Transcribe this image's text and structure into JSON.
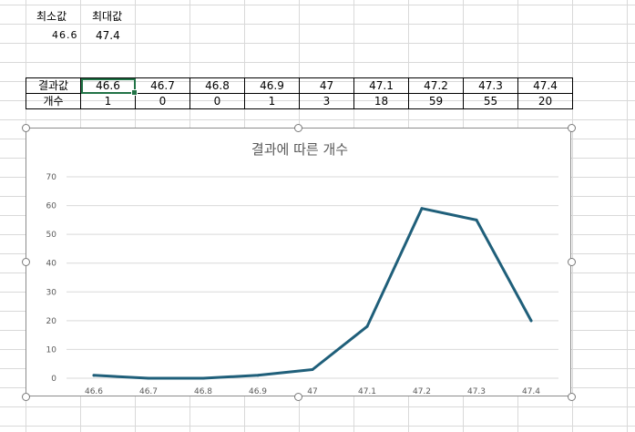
{
  "header": {
    "min_label": "최소값",
    "max_label": "최대값",
    "min_value": "46.6",
    "max_value": "47.4"
  },
  "table": {
    "row1_label": "결과값",
    "row2_label": "개수",
    "results": [
      "46.6",
      "46.7",
      "46.8",
      "46.9",
      "47",
      "47.1",
      "47.2",
      "47.3",
      "47.4"
    ],
    "counts": [
      "1",
      "0",
      "0",
      "1",
      "3",
      "18",
      "59",
      "55",
      "20"
    ]
  },
  "chart_data": {
    "type": "line",
    "title": "결과에 따른 개수",
    "categories": [
      "46.6",
      "46.7",
      "46.8",
      "46.9",
      "47",
      "47.1",
      "47.2",
      "47.3",
      "47.4"
    ],
    "series": [
      {
        "values": [
          1,
          0,
          0,
          1,
          3,
          18,
          59,
          55,
          20
        ]
      }
    ],
    "ylim": [
      0,
      70
    ],
    "yticks": [
      0,
      10,
      20,
      30,
      40,
      50,
      60,
      70
    ],
    "line_color": "#1f5f7a",
    "grid": true,
    "legend": false
  }
}
